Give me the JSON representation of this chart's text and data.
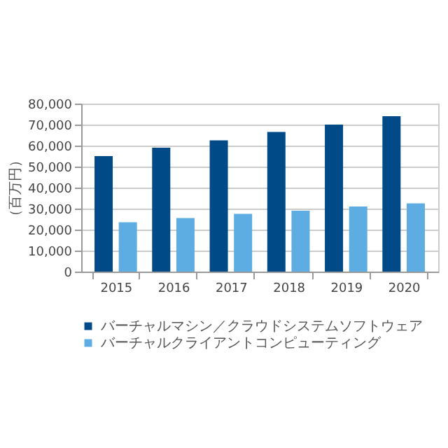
{
  "chart_data": {
    "type": "bar",
    "ylabel": "（百万円）",
    "categories": [
      "2015",
      "2016",
      "2017",
      "2018",
      "2019",
      "2020"
    ],
    "series": [
      {
        "name": "バーチャルマシン／クラウドシステムソフトウェア",
        "color": "#004b87",
        "values": [
          55000,
          59000,
          62500,
          66500,
          70000,
          74000
        ]
      },
      {
        "name": "バーチャルクライアントコンピューティング",
        "color": "#5dade2",
        "values": [
          23500,
          25500,
          27500,
          29000,
          31000,
          32500
        ]
      }
    ],
    "ylim": [
      0,
      80000
    ],
    "yticks": [
      0,
      {
        "value": 10000,
        "label": "10,000"
      },
      {
        "value": 20000,
        "label": "20,000"
      },
      {
        "value": 30000,
        "label": "30,000"
      },
      {
        "value": 40000,
        "label": "40,000"
      },
      {
        "value": 50000,
        "label": "50,000"
      },
      {
        "value": 60000,
        "label": "60,000"
      },
      {
        "value": 70000,
        "label": "70,000"
      },
      {
        "value": 80000,
        "label": "80,000"
      }
    ],
    "grid": "y",
    "legend": "bottom"
  }
}
